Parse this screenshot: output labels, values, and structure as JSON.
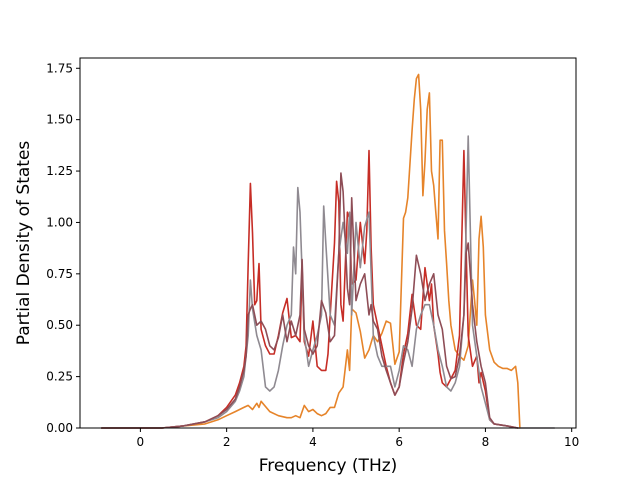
{
  "chart_data": {
    "type": "line",
    "title": "",
    "xlabel": "Frequency (THz)",
    "ylabel": "Partial Density of States",
    "xlim": [
      -1.4,
      10.1
    ],
    "ylim": [
      0,
      1.8
    ],
    "xticks": [
      0,
      2,
      4,
      6,
      8,
      10
    ],
    "yticks": [
      0.0,
      0.25,
      0.5,
      0.75,
      1.0,
      1.25,
      1.5,
      1.75
    ],
    "xtick_labels": [
      "0",
      "2",
      "4",
      "6",
      "8",
      "10"
    ],
    "ytick_labels": [
      "0.00",
      "0.25",
      "0.50",
      "0.75",
      "1.00",
      "1.25",
      "1.50",
      "1.75"
    ],
    "grid": false,
    "legend": false,
    "series": [
      {
        "color": "#e6842a",
        "x": [
          -0.9,
          0.0,
          0.5,
          1.0,
          1.5,
          1.8,
          2.0,
          2.2,
          2.4,
          2.5,
          2.6,
          2.7,
          2.75,
          2.8,
          3.0,
          3.2,
          3.4,
          3.5,
          3.6,
          3.7,
          3.8,
          3.9,
          4.0,
          4.1,
          4.2,
          4.3,
          4.4,
          4.5,
          4.6,
          4.7,
          4.8,
          4.85,
          4.9,
          5.0,
          5.1,
          5.2,
          5.3,
          5.4,
          5.5,
          5.6,
          5.7,
          5.8,
          5.9,
          6.0,
          6.1,
          6.15,
          6.2,
          6.3,
          6.35,
          6.4,
          6.45,
          6.5,
          6.55,
          6.6,
          6.65,
          6.7,
          6.75,
          6.8,
          6.85,
          6.9,
          6.95,
          7.0,
          7.05,
          7.1,
          7.15,
          7.2,
          7.3,
          7.4,
          7.5,
          7.6,
          7.7,
          7.75,
          7.8,
          7.85,
          7.9,
          7.95,
          8.0,
          8.1,
          8.2,
          8.3,
          8.4,
          8.5,
          8.6,
          8.7,
          8.75,
          8.8
        ],
        "y": [
          0.0,
          0.0,
          0.0,
          0.01,
          0.02,
          0.04,
          0.06,
          0.08,
          0.1,
          0.11,
          0.09,
          0.12,
          0.1,
          0.13,
          0.08,
          0.06,
          0.05,
          0.05,
          0.06,
          0.05,
          0.11,
          0.08,
          0.09,
          0.07,
          0.06,
          0.07,
          0.1,
          0.1,
          0.17,
          0.2,
          0.38,
          0.28,
          0.58,
          0.56,
          0.47,
          0.34,
          0.38,
          0.45,
          0.42,
          0.46,
          0.52,
          0.51,
          0.31,
          0.37,
          1.02,
          1.05,
          1.12,
          1.45,
          1.6,
          1.7,
          1.72,
          1.55,
          1.13,
          1.3,
          1.55,
          1.63,
          1.25,
          1.18,
          1.05,
          0.92,
          1.4,
          1.4,
          0.96,
          0.8,
          0.62,
          0.5,
          0.38,
          0.35,
          0.33,
          0.4,
          0.72,
          0.62,
          0.5,
          0.92,
          1.03,
          0.88,
          0.55,
          0.38,
          0.32,
          0.3,
          0.29,
          0.29,
          0.28,
          0.3,
          0.22,
          0.0
        ]
      },
      {
        "color": "#c62d26",
        "x": [
          -0.9,
          0.0,
          0.5,
          1.0,
          1.5,
          1.8,
          2.0,
          2.2,
          2.3,
          2.4,
          2.45,
          2.5,
          2.55,
          2.6,
          2.65,
          2.7,
          2.75,
          2.8,
          2.9,
          3.0,
          3.1,
          3.2,
          3.3,
          3.4,
          3.5,
          3.6,
          3.7,
          3.75,
          3.8,
          3.9,
          4.0,
          4.1,
          4.2,
          4.3,
          4.35,
          4.4,
          4.5,
          4.55,
          4.6,
          4.65,
          4.7,
          4.8,
          4.85,
          4.9,
          5.0,
          5.1,
          5.2,
          5.25,
          5.3,
          5.35,
          5.4,
          5.5,
          5.6,
          5.7,
          5.8,
          5.9,
          6.0,
          6.1,
          6.2,
          6.3,
          6.4,
          6.5,
          6.6,
          6.7,
          6.75,
          6.8,
          6.9,
          6.95,
          7.0,
          7.1,
          7.2,
          7.3,
          7.4,
          7.5,
          7.55,
          7.6,
          7.7,
          7.8,
          7.85,
          7.9,
          8.0,
          8.1,
          8.2,
          8.5,
          8.75
        ],
        "y": [
          0.0,
          0.0,
          0.0,
          0.01,
          0.03,
          0.06,
          0.1,
          0.16,
          0.22,
          0.3,
          0.4,
          0.8,
          1.19,
          0.95,
          0.6,
          0.62,
          0.8,
          0.48,
          0.4,
          0.36,
          0.36,
          0.45,
          0.56,
          0.63,
          0.44,
          0.45,
          0.42,
          0.78,
          0.42,
          0.35,
          0.52,
          0.3,
          0.28,
          0.28,
          0.36,
          0.55,
          0.9,
          1.2,
          1.1,
          0.6,
          0.52,
          1.05,
          1.02,
          0.7,
          0.72,
          1.0,
          0.8,
          0.96,
          1.35,
          0.88,
          0.6,
          0.5,
          0.4,
          0.3,
          0.22,
          0.16,
          0.2,
          0.36,
          0.46,
          0.65,
          0.5,
          0.48,
          0.78,
          0.62,
          0.7,
          0.5,
          0.36,
          0.27,
          0.22,
          0.2,
          0.24,
          0.28,
          0.45,
          1.35,
          0.9,
          0.45,
          0.3,
          0.35,
          0.22,
          0.27,
          0.18,
          0.04,
          0.02,
          0.01,
          0.0
        ]
      },
      {
        "color": "#8f8a91",
        "x": [
          -0.9,
          0.0,
          0.5,
          1.0,
          1.5,
          1.8,
          2.0,
          2.2,
          2.3,
          2.4,
          2.5,
          2.55,
          2.6,
          2.7,
          2.8,
          2.9,
          3.0,
          3.1,
          3.2,
          3.3,
          3.4,
          3.5,
          3.55,
          3.6,
          3.65,
          3.7,
          3.8,
          3.9,
          4.0,
          4.1,
          4.2,
          4.25,
          4.3,
          4.4,
          4.5,
          4.6,
          4.7,
          4.8,
          4.85,
          4.9,
          5.0,
          5.1,
          5.2,
          5.3,
          5.4,
          5.5,
          5.6,
          5.7,
          5.8,
          5.9,
          6.0,
          6.1,
          6.2,
          6.3,
          6.4,
          6.5,
          6.6,
          6.7,
          6.8,
          6.9,
          7.0,
          7.1,
          7.2,
          7.3,
          7.4,
          7.5,
          7.55,
          7.6,
          7.7,
          7.8,
          7.9,
          8.0,
          8.1,
          8.2,
          8.5,
          8.7,
          9.0,
          9.3,
          9.6
        ],
        "y": [
          0.0,
          0.0,
          0.0,
          0.01,
          0.03,
          0.05,
          0.08,
          0.13,
          0.18,
          0.25,
          0.45,
          0.72,
          0.58,
          0.45,
          0.38,
          0.2,
          0.18,
          0.2,
          0.28,
          0.4,
          0.5,
          0.55,
          0.88,
          0.75,
          1.17,
          1.05,
          0.45,
          0.3,
          0.38,
          0.45,
          0.55,
          1.08,
          0.9,
          0.55,
          0.5,
          0.85,
          1.0,
          0.85,
          1.05,
          0.55,
          1.0,
          0.78,
          0.98,
          1.05,
          0.45,
          0.35,
          0.3,
          0.3,
          0.3,
          0.2,
          0.28,
          0.4,
          0.38,
          0.3,
          0.48,
          0.55,
          0.6,
          0.6,
          0.5,
          0.38,
          0.3,
          0.2,
          0.18,
          0.22,
          0.3,
          0.55,
          0.95,
          1.42,
          0.5,
          0.35,
          0.2,
          0.12,
          0.04,
          0.02,
          0.01,
          0.0,
          0.0,
          0.0,
          0.0
        ]
      },
      {
        "color": "#8e4d56",
        "x": [
          -0.9,
          0.0,
          0.5,
          1.0,
          1.5,
          1.8,
          2.0,
          2.2,
          2.3,
          2.4,
          2.45,
          2.5,
          2.55,
          2.6,
          2.7,
          2.8,
          2.9,
          3.0,
          3.1,
          3.2,
          3.3,
          3.4,
          3.5,
          3.6,
          3.7,
          3.75,
          3.8,
          3.9,
          4.0,
          4.1,
          4.2,
          4.3,
          4.4,
          4.5,
          4.6,
          4.65,
          4.7,
          4.8,
          4.85,
          4.9,
          5.0,
          5.1,
          5.2,
          5.3,
          5.35,
          5.4,
          5.5,
          5.6,
          5.7,
          5.8,
          5.9,
          6.0,
          6.1,
          6.2,
          6.3,
          6.4,
          6.5,
          6.6,
          6.7,
          6.8,
          6.9,
          7.0,
          7.1,
          7.2,
          7.3,
          7.4,
          7.5,
          7.55,
          7.6,
          7.7,
          7.8,
          7.9,
          8.0,
          8.1,
          8.2,
          8.5,
          8.75
        ],
        "y": [
          0.0,
          0.0,
          0.0,
          0.01,
          0.03,
          0.06,
          0.09,
          0.14,
          0.2,
          0.28,
          0.35,
          0.55,
          0.58,
          0.6,
          0.5,
          0.52,
          0.48,
          0.4,
          0.38,
          0.44,
          0.55,
          0.42,
          0.52,
          0.45,
          0.55,
          0.82,
          0.48,
          0.4,
          0.36,
          0.4,
          0.62,
          0.56,
          0.42,
          0.45,
          0.85,
          1.24,
          1.15,
          0.68,
          0.6,
          1.12,
          0.62,
          0.7,
          0.75,
          0.55,
          0.6,
          0.52,
          0.48,
          0.35,
          0.28,
          0.22,
          0.16,
          0.2,
          0.32,
          0.42,
          0.58,
          0.84,
          0.75,
          0.62,
          0.7,
          0.75,
          0.55,
          0.48,
          0.3,
          0.24,
          0.25,
          0.35,
          0.55,
          0.85,
          0.9,
          0.6,
          0.42,
          0.3,
          0.22,
          0.05,
          0.02,
          0.01,
          0.0
        ]
      }
    ]
  }
}
